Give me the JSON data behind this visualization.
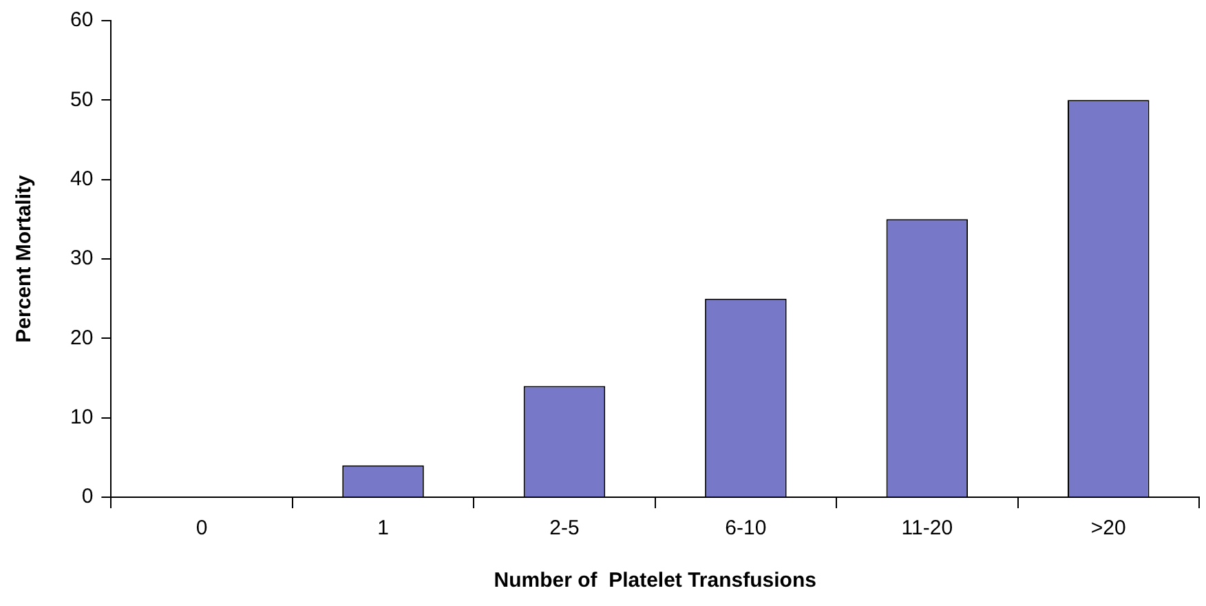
{
  "chart_data": {
    "type": "bar",
    "xlabel": "Number of  Platelet Transfusions",
    "ylabel": "Percent Mortality",
    "categories": [
      "0",
      "1",
      "2-5",
      "6-10",
      "11-20",
      ">20"
    ],
    "values": [
      0,
      4,
      14,
      25,
      35,
      50
    ],
    "color": "#7779c8",
    "ylim": [
      0,
      60
    ],
    "yticks": [
      0,
      10,
      20,
      30,
      40,
      50,
      60
    ],
    "grid": false,
    "legend": false
  }
}
